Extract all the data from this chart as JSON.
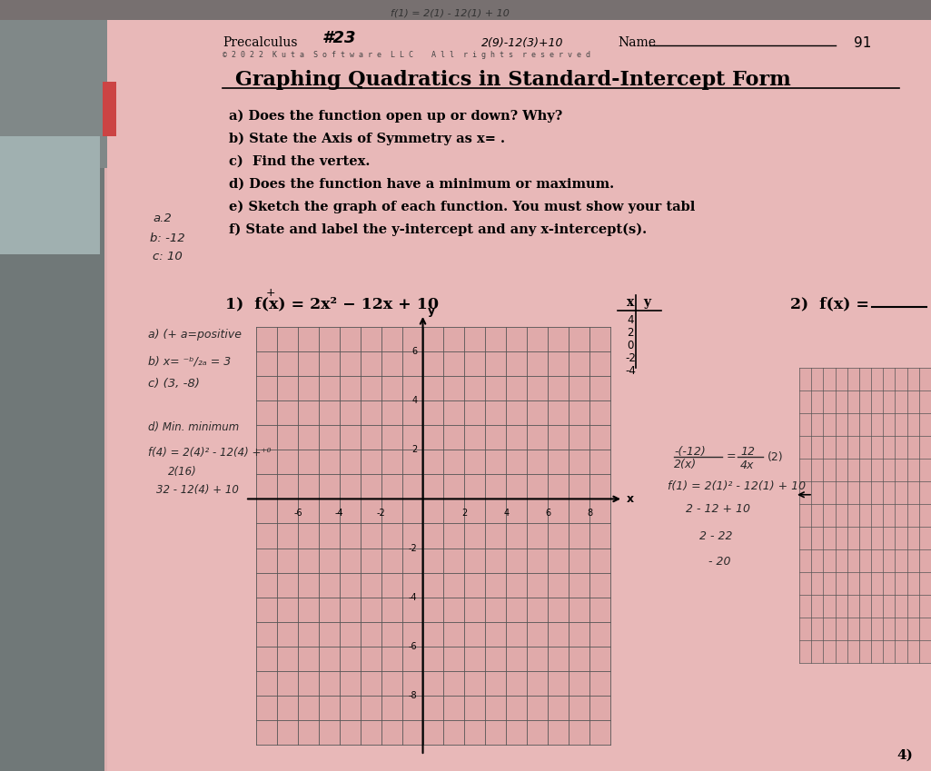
{
  "paper_color": "#e8b8b8",
  "paper_light": "#ecc0c0",
  "dark_bg_left": "#6a6060",
  "dark_bg_top": "#555050",
  "pink_paper": "#dba8a8",
  "title": "Graphing Quadratics in Standard-Intercept Form",
  "instructions": [
    "a) Does the function open up or down? Why?",
    "b) State the Axis of Symmetry as x= .",
    "c)  Find the vertex.",
    "d) Does the function have a minimum or maximum.",
    "e) Sketch the graph of each function. You must show your tabl",
    "f) State and label the y-intercept and any x-intercept(s)."
  ],
  "grid_color": "#555555",
  "grid_lw": 0.6,
  "axis_lw": 1.5
}
